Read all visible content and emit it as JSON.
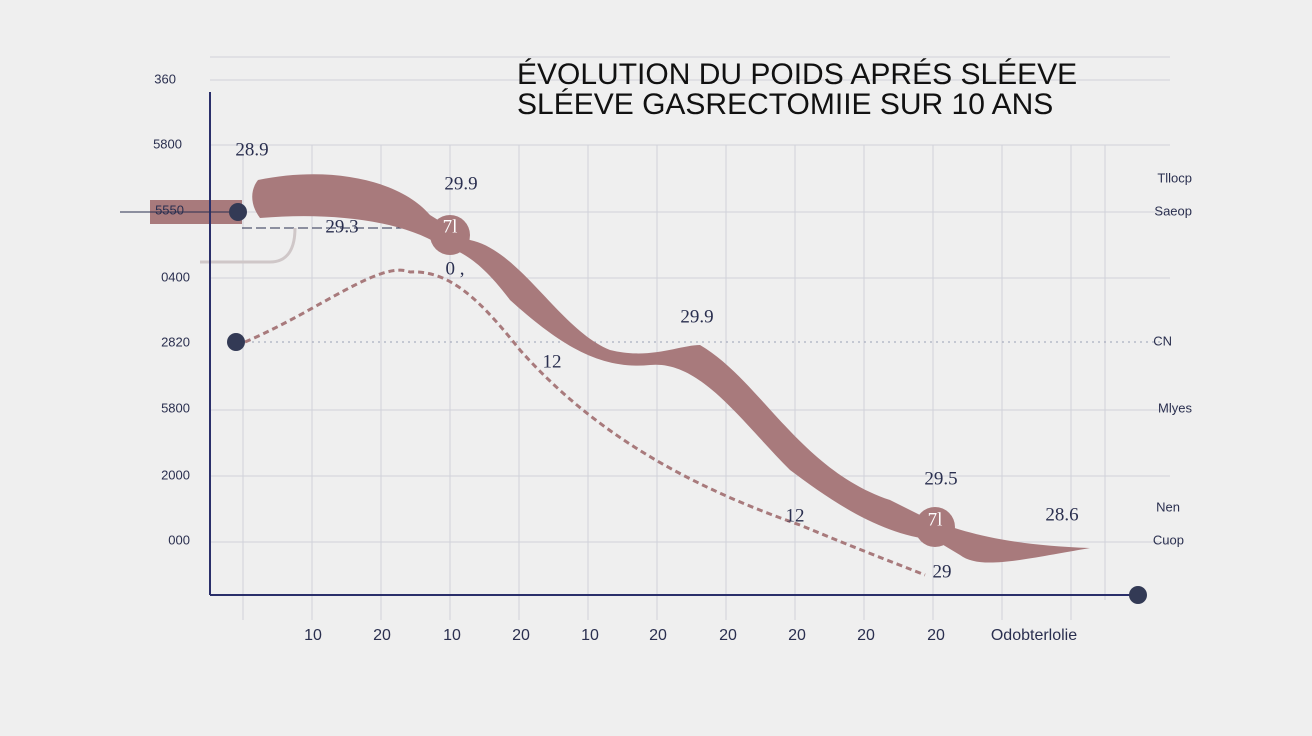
{
  "title": [
    "ÉVOLUTION DU POIDS APRÉS SLÉEVE",
    "SLÉEVE GASRECTOMIIE SUR 10 ANS"
  ],
  "y_labels": [
    "360",
    "5800",
    "5550",
    "0400",
    "2820",
    "5800",
    "2000",
    "000"
  ],
  "x_labels": [
    "10",
    "20",
    "10",
    "20",
    "10",
    "20",
    "20",
    "20",
    "20",
    "20",
    "Odobterlolie"
  ],
  "right_labels": [
    "Tllocp",
    "Saeop",
    "CN",
    "Mlyes",
    "Nen",
    "Cuop"
  ],
  "annotations": [
    "28.9",
    "29.9",
    "29.3",
    "0 ,",
    "12",
    "29.9",
    "29.5",
    "12",
    "28.6",
    "29",
    "7l",
    "7l"
  ]
}
